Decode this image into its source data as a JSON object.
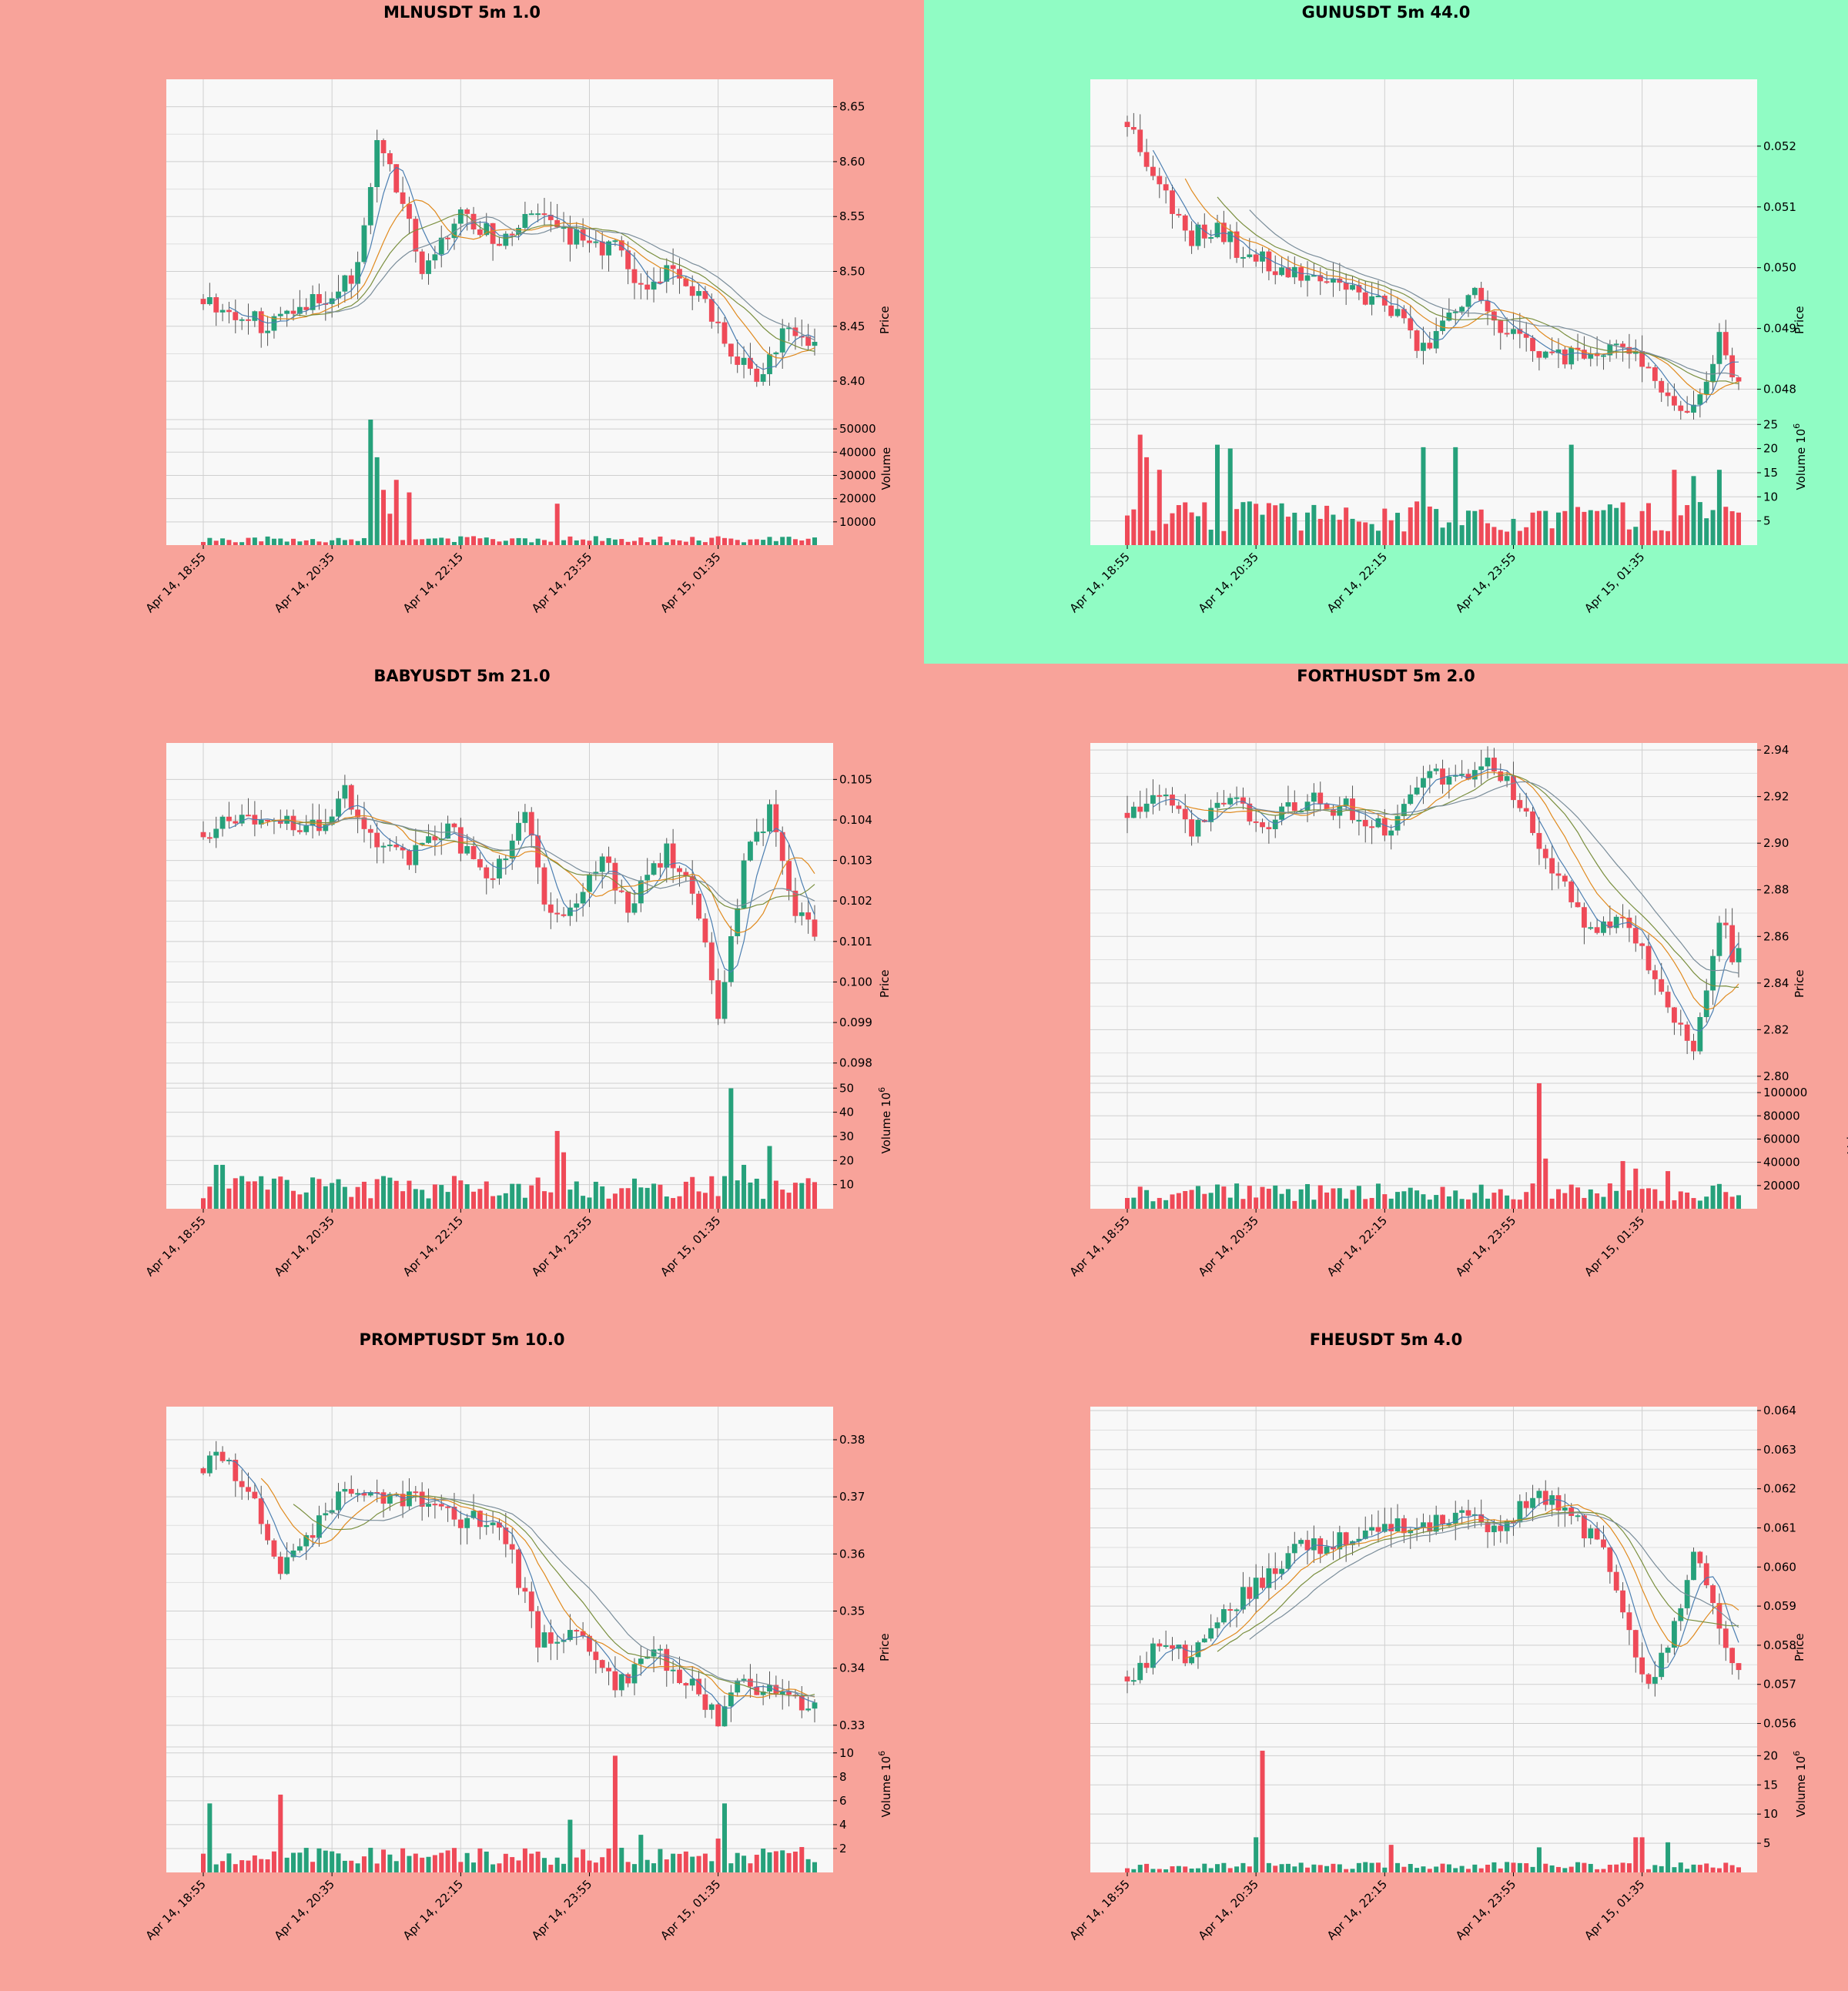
{
  "colors": {
    "up": "#26a17b",
    "down": "#ef4a58",
    "ma_fast": "#4c7fb1",
    "ma_mid": "#e08a1e",
    "ma_slow": "#7a8f3f",
    "ma_long": "#7a8d9a",
    "bg_salmon": "#f8a39a",
    "bg_green": "#90fcc4"
  },
  "time_ticks": [
    "Apr 14, 18:55",
    "Apr 14, 20:35",
    "Apr 14, 22:15",
    "Apr 14, 23:55",
    "Apr 15, 01:35"
  ],
  "chart_data": [
    {
      "type": "candlestick",
      "title": "MLNUSDT 5m 1.0",
      "background": "bg_salmon",
      "ylabel": "Price",
      "volume_label": "Volume",
      "volume_exp": "",
      "price_ticks": [
        "8.40",
        "8.45",
        "8.50",
        "8.55",
        "8.60",
        "8.65"
      ],
      "price_range": [
        8.365,
        8.675
      ],
      "volume_ticks": [
        "10000",
        "20000",
        "30000",
        "40000",
        "50000"
      ],
      "volume_range": [
        0,
        54000
      ],
      "volume_pattern": "mln",
      "path": [
        [
          0,
          8.475
        ],
        [
          10,
          8.45
        ],
        [
          14,
          8.47
        ],
        [
          20,
          8.48
        ],
        [
          24,
          8.5
        ],
        [
          27,
          8.62
        ],
        [
          30,
          8.58
        ],
        [
          34,
          8.5
        ],
        [
          36,
          8.52
        ],
        [
          40,
          8.55
        ],
        [
          46,
          8.53
        ],
        [
          52,
          8.55
        ],
        [
          58,
          8.53
        ],
        [
          64,
          8.52
        ],
        [
          68,
          8.48
        ],
        [
          72,
          8.5
        ],
        [
          78,
          8.47
        ],
        [
          82,
          8.43
        ],
        [
          86,
          8.4
        ],
        [
          90,
          8.44
        ],
        [
          92,
          8.45
        ],
        [
          94,
          8.43
        ]
      ],
      "seed": 11
    },
    {
      "type": "candlestick",
      "title": "GUNUSDT 5m 44.0",
      "background": "bg_green",
      "ylabel": "Price",
      "volume_label": "Volume",
      "volume_exp": "6",
      "price_ticks": [
        "0.048",
        "0.049",
        "0.050",
        "0.051",
        "0.052"
      ],
      "price_range": [
        0.0475,
        0.0531
      ],
      "volume_ticks": [
        "5",
        "10",
        "15",
        "20",
        "25"
      ],
      "volume_range": [
        0,
        26
      ],
      "volume_pattern": "gun",
      "path": [
        [
          0,
          0.0524
        ],
        [
          6,
          0.0512
        ],
        [
          10,
          0.0505
        ],
        [
          14,
          0.0507
        ],
        [
          18,
          0.0502
        ],
        [
          24,
          0.05
        ],
        [
          30,
          0.0498
        ],
        [
          36,
          0.0496
        ],
        [
          42,
          0.0492
        ],
        [
          46,
          0.0486
        ],
        [
          50,
          0.0493
        ],
        [
          54,
          0.0497
        ],
        [
          58,
          0.049
        ],
        [
          62,
          0.0487
        ],
        [
          66,
          0.0485
        ],
        [
          72,
          0.0487
        ],
        [
          78,
          0.0487
        ],
        [
          82,
          0.0482
        ],
        [
          86,
          0.0476
        ],
        [
          90,
          0.0481
        ],
        [
          92,
          0.0489
        ],
        [
          94,
          0.0481
        ]
      ],
      "seed": 23
    },
    {
      "type": "candlestick",
      "title": "BABYUSDT 5m 21.0",
      "background": "bg_salmon",
      "ylabel": "Price",
      "volume_label": "Volume",
      "volume_exp": "6",
      "price_ticks": [
        "0.098",
        "0.099",
        "0.100",
        "0.101",
        "0.102",
        "0.103",
        "0.104",
        "0.105"
      ],
      "price_range": [
        0.0975,
        0.1059
      ],
      "volume_ticks": [
        "10",
        "20",
        "30",
        "40",
        "50"
      ],
      "volume_range": [
        0,
        52
      ],
      "volume_pattern": "baby",
      "path": [
        [
          0,
          0.1037
        ],
        [
          6,
          0.1042
        ],
        [
          12,
          0.104
        ],
        [
          18,
          0.1038
        ],
        [
          22,
          0.1048
        ],
        [
          26,
          0.1035
        ],
        [
          32,
          0.1031
        ],
        [
          38,
          0.1039
        ],
        [
          44,
          0.1024
        ],
        [
          50,
          0.1041
        ],
        [
          54,
          0.1015
        ],
        [
          58,
          0.1021
        ],
        [
          62,
          0.1031
        ],
        [
          66,
          0.1018
        ],
        [
          72,
          0.1032
        ],
        [
          76,
          0.1022
        ],
        [
          80,
          0.0993
        ],
        [
          84,
          0.1029
        ],
        [
          88,
          0.1042
        ],
        [
          92,
          0.1018
        ],
        [
          94,
          0.1013
        ]
      ],
      "seed": 37
    },
    {
      "type": "candlestick",
      "title": "FORTHUSDT 5m 2.0",
      "background": "bg_salmon",
      "ylabel": "Price",
      "volume_label": "Volume",
      "volume_exp": "",
      "price_ticks": [
        "2.80",
        "2.82",
        "2.84",
        "2.86",
        "2.88",
        "2.90",
        "2.92",
        "2.94"
      ],
      "price_range": [
        2.797,
        2.943
      ],
      "volume_ticks": [
        "20000",
        "40000",
        "60000",
        "80000",
        "100000"
      ],
      "volume_range": [
        0,
        108000
      ],
      "volume_pattern": "forth",
      "path": [
        [
          0,
          2.913
        ],
        [
          6,
          2.918
        ],
        [
          10,
          2.905
        ],
        [
          16,
          2.917
        ],
        [
          22,
          2.91
        ],
        [
          28,
          2.918
        ],
        [
          34,
          2.915
        ],
        [
          40,
          2.905
        ],
        [
          46,
          2.93
        ],
        [
          52,
          2.928
        ],
        [
          56,
          2.935
        ],
        [
          60,
          2.922
        ],
        [
          64,
          2.9
        ],
        [
          68,
          2.882
        ],
        [
          72,
          2.862
        ],
        [
          76,
          2.868
        ],
        [
          80,
          2.855
        ],
        [
          84,
          2.826
        ],
        [
          88,
          2.812
        ],
        [
          92,
          2.87
        ],
        [
          94,
          2.853
        ]
      ],
      "seed": 41
    },
    {
      "type": "candlestick",
      "title": "PROMPTUSDT 5m 10.0",
      "background": "bg_salmon",
      "ylabel": "Price",
      "volume_label": "Volume",
      "volume_exp": "6",
      "price_ticks": [
        "0.33",
        "0.34",
        "0.35",
        "0.36",
        "0.37",
        "0.38"
      ],
      "price_range": [
        0.3262,
        0.3858
      ],
      "volume_ticks": [
        "2",
        "4",
        "6",
        "8",
        "10"
      ],
      "volume_range": [
        0,
        10.5
      ],
      "volume_pattern": "prompt",
      "path": [
        [
          0,
          0.375
        ],
        [
          2,
          0.378
        ],
        [
          8,
          0.37
        ],
        [
          12,
          0.358
        ],
        [
          18,
          0.365
        ],
        [
          22,
          0.372
        ],
        [
          28,
          0.369
        ],
        [
          34,
          0.37
        ],
        [
          40,
          0.366
        ],
        [
          46,
          0.366
        ],
        [
          52,
          0.345
        ],
        [
          58,
          0.346
        ],
        [
          64,
          0.336
        ],
        [
          70,
          0.343
        ],
        [
          76,
          0.337
        ],
        [
          80,
          0.331
        ],
        [
          84,
          0.338
        ],
        [
          88,
          0.336
        ],
        [
          94,
          0.334
        ]
      ],
      "seed": 53
    },
    {
      "type": "candlestick",
      "title": "FHEUSDT 5m 4.0",
      "background": "bg_salmon",
      "ylabel": "Price",
      "volume_label": "Volume",
      "volume_exp": "6",
      "price_ticks": [
        "0.056",
        "0.057",
        "0.058",
        "0.059",
        "0.060",
        "0.061",
        "0.062",
        "0.063",
        "0.064"
      ],
      "price_range": [
        0.0554,
        0.0641
      ],
      "volume_ticks": [
        "5",
        "10",
        "15",
        "20"
      ],
      "volume_range": [
        0,
        21.5
      ],
      "volume_pattern": "fhe",
      "path": [
        [
          0,
          0.0572
        ],
        [
          4,
          0.0578
        ],
        [
          10,
          0.0578
        ],
        [
          14,
          0.0588
        ],
        [
          20,
          0.0595
        ],
        [
          26,
          0.0604
        ],
        [
          34,
          0.0607
        ],
        [
          40,
          0.0611
        ],
        [
          46,
          0.061
        ],
        [
          52,
          0.0614
        ],
        [
          58,
          0.0609
        ],
        [
          64,
          0.062
        ],
        [
          70,
          0.0611
        ],
        [
          74,
          0.0605
        ],
        [
          80,
          0.057
        ],
        [
          84,
          0.0578
        ],
        [
          88,
          0.0604
        ],
        [
          92,
          0.0586
        ],
        [
          94,
          0.0576
        ]
      ],
      "seed": 67
    }
  ]
}
